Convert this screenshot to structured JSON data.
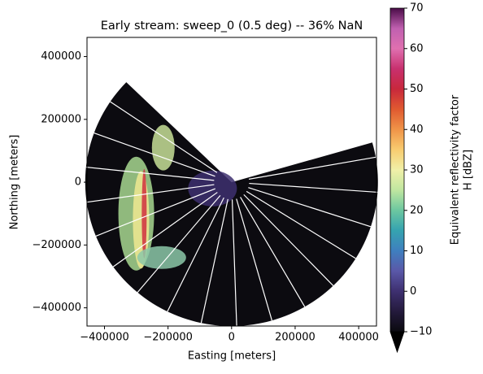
{
  "chart_data": {
    "type": "radar-ppi",
    "title": "Early stream: sweep_0 (0.5 deg) -- 36% NaN",
    "x_label": "Easting [meters]",
    "y_label": "Northing [meters]",
    "xlim": [
      -455000,
      456000
    ],
    "ylim": [
      -458000,
      461000
    ],
    "xticks": [
      {
        "value": -400000,
        "label": "−400000"
      },
      {
        "value": -200000,
        "label": "−200000"
      },
      0,
      200000,
      400000
    ],
    "yticks": [
      {
        "value": -400000,
        "label": "−400000"
      },
      {
        "value": -200000,
        "label": "−200000"
      },
      0,
      200000,
      400000
    ],
    "colorbar": {
      "label": [
        "Equivalent reflectivity factor",
        "H [dBZ]"
      ],
      "lim": [
        -10,
        70
      ],
      "ticks": [
        {
          "value": -10,
          "label": "−10"
        },
        0,
        10,
        20,
        30,
        40,
        50,
        60,
        70
      ],
      "colormap": [
        "#0a0a0f",
        "#241a3c",
        "#3e3070",
        "#5a58a8",
        "#3f7fbf",
        "#35a3b0",
        "#6cc7a0",
        "#bfe6a0",
        "#f0f0a8",
        "#f8cc70",
        "#f09448",
        "#e05a30",
        "#c8283c",
        "#c8306e",
        "#e070b0",
        "#c060b0",
        "#4a0c48"
      ],
      "extend_color": "#000000"
    }
  }
}
